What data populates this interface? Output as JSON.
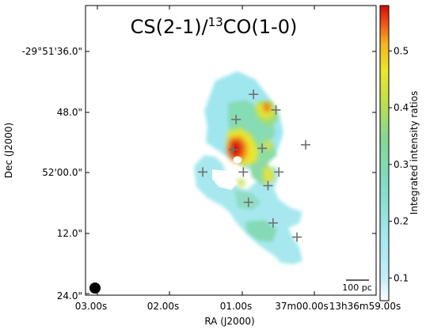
{
  "chart_data": {
    "type": "heatmap",
    "title_main": "CS(2-1)/",
    "title_sup": "13",
    "title_rest": "CO(1-0)",
    "xlabel": "RA (J2000)",
    "ylabel": "Dec (J2000)",
    "x_ticks": [
      "03.00s",
      "02.00s",
      "01.00s",
      "37m00.00s",
      "13h36m59.00s"
    ],
    "y_ticks": [
      "-29°51'36.0\"",
      "48.0\"",
      "52'00.0\"",
      "12.0\"",
      "24.0\""
    ],
    "colorbar": {
      "label": "Integrated intensity ratios",
      "range": [
        0.06,
        0.58
      ],
      "ticks": [
        "0.1",
        "0.2",
        "0.3",
        "0.4",
        "0.5"
      ],
      "tick_values": [
        0.1,
        0.2,
        0.3,
        0.4,
        0.5
      ]
    },
    "scalebar_label": "100 pc",
    "markers": [
      {
        "ra_s": 0.84,
        "dec": 44.5
      },
      {
        "ra_s": 1.08,
        "dec": 49.5
      },
      {
        "ra_s": 0.53,
        "dec": 47.6
      },
      {
        "ra_s": 0.12,
        "dec": 54.5
      },
      {
        "ra_s": 1.12,
        "dec": 55.5
      },
      {
        "ra_s": 0.72,
        "dec": 55.2
      },
      {
        "ra_s": 0.98,
        "dec": 59.9
      },
      {
        "ra_s": 1.54,
        "dec": 59.9
      },
      {
        "ra_s": 0.49,
        "dec": 59.9
      },
      {
        "ra_s": 0.64,
        "dec": 62.6
      },
      {
        "ra_s": 0.91,
        "dec": 65.9
      },
      {
        "ra_s": 0.57,
        "dec": 70.0
      },
      {
        "ra_s": 0.24,
        "dec": 72.8
      }
    ]
  },
  "colors": {
    "stops": [
      "#ffffff",
      "#aee8f3",
      "#8ee2d6",
      "#7ed6a4",
      "#b6df5a",
      "#eae830",
      "#f5c020",
      "#ef5a12",
      "#d60c08"
    ]
  }
}
